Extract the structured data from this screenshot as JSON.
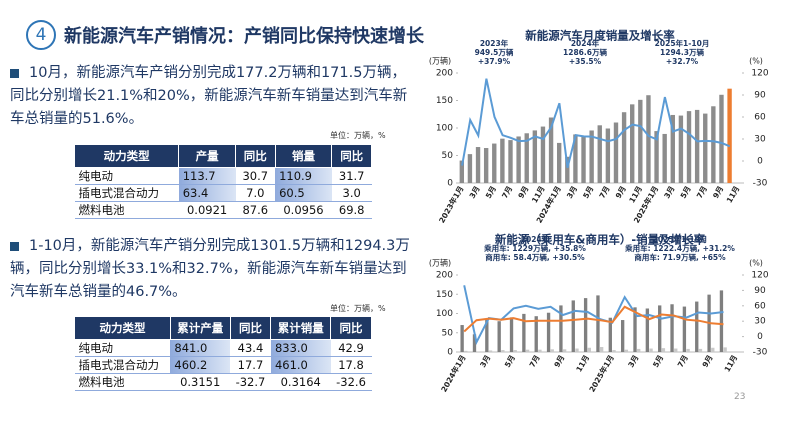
{
  "header": {
    "number": "4",
    "title": "新能源汽车产销情况：产销同比保持快速增长"
  },
  "sections": [
    {
      "text": "10月，新能源汽车产销分别完成177.2万辆和171.5万辆，同比分别增长21.1%和20%，新能源汽车新车销量达到汽车新车总销量的51.6%。",
      "unit": "单位：万辆，%",
      "table": {
        "headers": [
          "动力类型",
          "产量",
          "同比",
          "销量",
          "同比"
        ],
        "rows": [
          [
            "纯电动",
            "113.7",
            "30.7",
            "110.9",
            "31.7"
          ],
          [
            "插电式混合动力",
            "63.4",
            "7.0",
            "60.5",
            "3.0"
          ],
          [
            "燃料电池",
            "0.0921",
            "87.6",
            "0.0956",
            "69.8"
          ]
        ]
      }
    },
    {
      "text": "1-10月，新能源汽车产销分别完成1301.5万辆和1294.3万辆，同比分别增长33.1%和32.7%，新能源汽车新车销量达到汽车新车总销量的46.7%。",
      "unit": "单位：万辆，%",
      "table": {
        "headers": [
          "动力类型",
          "累计产量",
          "同比",
          "累计销量",
          "同比"
        ],
        "rows": [
          [
            "纯电动",
            "841.0",
            "43.4",
            "833.0",
            "42.9"
          ],
          [
            "插电式混合动力",
            "460.2",
            "17.7",
            "461.0",
            "17.8"
          ],
          [
            "燃料电池",
            "0.3151",
            "-32.7",
            "0.3164",
            "-32.6"
          ]
        ]
      }
    }
  ],
  "page_number": "23",
  "chart_data": [
    {
      "type": "bar",
      "title": "新能源汽车月度销量及增长率",
      "ylabel": "(万辆)",
      "y2label": "(%)",
      "categories": [
        "2023年1月",
        null,
        "3月",
        null,
        "5月",
        null,
        "7月",
        null,
        "9月",
        null,
        "11月",
        null,
        "2024年1月",
        null,
        "3月",
        null,
        "5月",
        null,
        "7月",
        null,
        "9月",
        null,
        "11月",
        null,
        "2025年1月",
        null,
        "3月",
        null,
        "5月",
        null,
        "7月",
        null,
        "9月",
        null,
        "11月"
      ],
      "ylim": [
        0,
        200
      ],
      "yticks": [
        0,
        50,
        100,
        150,
        200
      ],
      "y2lim": [
        -30,
        120
      ],
      "y2ticks": [
        -30,
        0,
        30,
        60,
        90,
        120
      ],
      "series": [
        {
          "type": "bar",
          "color": "#8c8c8c",
          "values": [
            40.8,
            52.5,
            65.4,
            63.6,
            71.7,
            80.6,
            78.0,
            84.6,
            90.4,
            95.6,
            102.6,
            119.1,
            72.9,
            47.7,
            88.3,
            85.0,
            95.5,
            104.9,
            99.1,
            110.0,
            128.7,
            143.0,
            151.2,
            159.6,
            94.4,
            89.2,
            123.7,
            122.6,
            130.7,
            132.9,
            126.2,
            139.5,
            160.4,
            171.5,
            null
          ],
          "colors": [
            "#8c8c8c",
            "#8c8c8c",
            "#8c8c8c",
            "#8c8c8c",
            "#8c8c8c",
            "#8c8c8c",
            "#8c8c8c",
            "#8c8c8c",
            "#8c8c8c",
            "#8c8c8c",
            "#8c8c8c",
            "#8c8c8c",
            "#8c8c8c",
            "#8c8c8c",
            "#8c8c8c",
            "#8c8c8c",
            "#8c8c8c",
            "#8c8c8c",
            "#8c8c8c",
            "#8c8c8c",
            "#8c8c8c",
            "#8c8c8c",
            "#8c8c8c",
            "#8c8c8c",
            "#8c8c8c",
            "#8c8c8c",
            "#8c8c8c",
            "#8c8c8c",
            "#8c8c8c",
            "#8c8c8c",
            "#8c8c8c",
            "#8c8c8c",
            "#8c8c8c",
            "#ed7d31",
            null
          ]
        },
        {
          "type": "line",
          "axis": "y2",
          "color": "#5b9bd5",
          "values": [
            -6.3,
            55.9,
            34.8,
            112.2,
            60.2,
            35.2,
            31.6,
            27.1,
            27.7,
            33.5,
            30.0,
            46.4,
            78.8,
            -9.2,
            35.3,
            33.5,
            33.3,
            30.1,
            27.0,
            30.0,
            42.3,
            49.6,
            47.4,
            34.0,
            29.4,
            87.1,
            40.1,
            44.2,
            36.9,
            26.7,
            27.4,
            26.8,
            24.6,
            20.0,
            null
          ]
        }
      ],
      "annotations": [
        {
          "lines": [
            "2023年",
            "949.5万辆",
            "+37.9%"
          ]
        },
        {
          "lines": [
            "2024年",
            "1286.6万辆",
            "+35.5%"
          ]
        },
        {
          "lines": [
            "2025年1-10月",
            "1294.3万辆",
            "+32.7%"
          ]
        }
      ]
    },
    {
      "type": "bar",
      "title": "新能源（乘用车&商用车）-销量及增长率",
      "ylabel": "(万辆)",
      "y2label": "(%)",
      "categories": [
        "2024年1月",
        null,
        "3月",
        null,
        "5月",
        null,
        "7月",
        null,
        "9月",
        null,
        "11月",
        null,
        "2025年1月",
        null,
        "3月",
        null,
        "5月",
        null,
        "7月",
        null,
        "9月",
        null,
        "11月"
      ],
      "ylim": [
        0,
        200
      ],
      "yticks": [
        0,
        50,
        100,
        150,
        200
      ],
      "y2lim": [
        -30,
        120
      ],
      "y2ticks": [
        -30,
        0,
        30,
        60,
        90,
        120
      ],
      "series": [
        {
          "type": "bar",
          "color": "#7f7f7f",
          "values": [
            70,
            46,
            84,
            80,
            90,
            99,
            93,
            102,
            121,
            134,
            140,
            147,
            89,
            83,
            116,
            113,
            121,
            124,
            118,
            131,
            149,
            160,
            null
          ]
        },
        {
          "type": "bar",
          "color": "#c9c9c9",
          "values": [
            3,
            1.5,
            4,
            5,
            5,
            6,
            6,
            7,
            7,
            9,
            11,
            13,
            5,
            6,
            8,
            9,
            10,
            9,
            8,
            8,
            11,
            12,
            null
          ]
        },
        {
          "type": "line",
          "axis": "y2",
          "color": "#5b9bd5",
          "values": [
            100,
            -11,
            36,
            33,
            55,
            60,
            54,
            58,
            42,
            50,
            48,
            34,
            27,
            77,
            40,
            42,
            35,
            40,
            37,
            47,
            45,
            48,
            null
          ]
        },
        {
          "type": "line",
          "axis": "y2",
          "color": "#ed7d31",
          "values": [
            10,
            32,
            35,
            33,
            36,
            30,
            31,
            31,
            31,
            33,
            35,
            32,
            28,
            58,
            46,
            34,
            43,
            41,
            33,
            31,
            26,
            24,
            null
          ]
        }
      ],
      "annotations": [
        {
          "lines": [
            "2024年",
            "乘用车: 1229万辆, +35.8%",
            "商用车: 58.4万辆, +30.5%"
          ]
        },
        {
          "lines": [
            "2025年1-10月",
            "乘用车: 1222.4万辆, +31.2%",
            "商用车: 71.9万辆, +65%"
          ]
        }
      ]
    }
  ]
}
